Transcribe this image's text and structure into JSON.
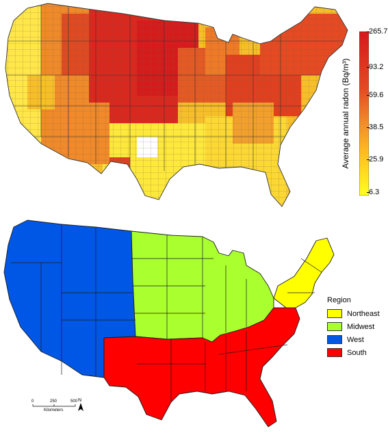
{
  "colorbar": {
    "title": "Average annual radon (Bq/m³)",
    "ticks": [
      "265.7",
      "93.2",
      "59.6",
      "38.5",
      "25.9",
      "6.3"
    ],
    "colors": [
      "#ffff00",
      "#ffd21e",
      "#f7a42a",
      "#ee6a25",
      "#e03420",
      "#d7191c"
    ]
  },
  "legend": {
    "title": "Region",
    "items": [
      {
        "label": "Northeast",
        "color": "#ffff00"
      },
      {
        "label": "Midwest",
        "color": "#aaff2e"
      },
      {
        "label": "West",
        "color": "#0057e6"
      },
      {
        "label": "South",
        "color": "#ff0000"
      }
    ]
  },
  "scalebar": {
    "ticks": [
      "0",
      "250",
      "500"
    ],
    "unit": "Kilometers",
    "north": "N"
  }
}
